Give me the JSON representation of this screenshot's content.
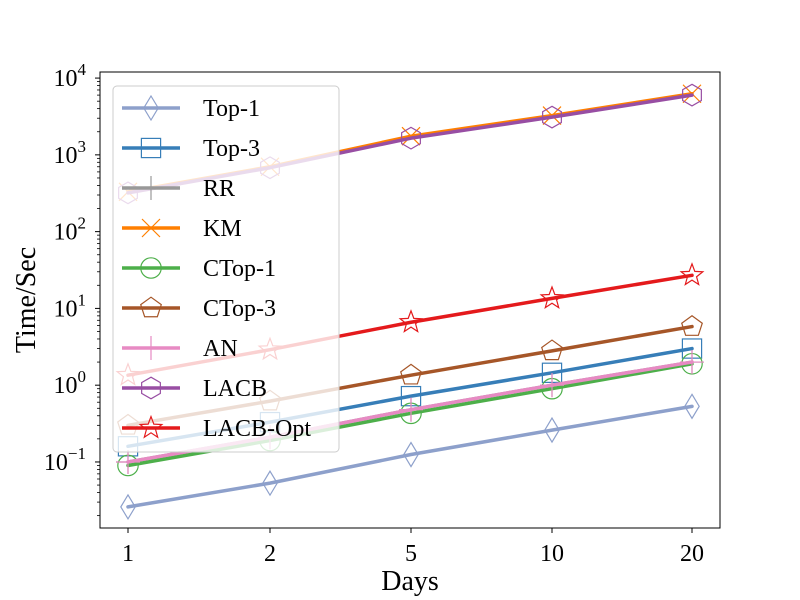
{
  "chart_data": {
    "type": "line",
    "xscale": "categorical",
    "yscale": "log",
    "ylim": [
      0.0138,
      12000
    ],
    "xlabel": "Days",
    "ylabel": "Time/Sec",
    "categories": [
      "1",
      "2",
      "5",
      "10",
      "20"
    ],
    "ytick_labels": [
      {
        "base": "10",
        "exp": "−1",
        "value": 0.1
      },
      {
        "base": "10",
        "exp": "0",
        "value": 1
      },
      {
        "base": "10",
        "exp": "1",
        "value": 10
      },
      {
        "base": "10",
        "exp": "2",
        "value": 100
      },
      {
        "base": "10",
        "exp": "3",
        "value": 1000
      },
      {
        "base": "10",
        "exp": "4",
        "value": 10000
      }
    ],
    "legend_position": "upper-left",
    "series": [
      {
        "name": "Top-1",
        "color": "#8da0cb",
        "marker": "thin_diamond",
        "values": [
          0.026,
          0.053,
          0.125,
          0.26,
          0.53
        ]
      },
      {
        "name": "Top-3",
        "color": "#377eb8",
        "marker": "square",
        "values": [
          0.16,
          0.33,
          0.72,
          1.45,
          3.0
        ]
      },
      {
        "name": "RR",
        "color": "#999999",
        "marker": "plus",
        "values": [
          0.1,
          0.21,
          0.48,
          1.0,
          2.0
        ]
      },
      {
        "name": "KM",
        "color": "#ff7f00",
        "marker": "x",
        "values": [
          330,
          700,
          1750,
          3250,
          6250
        ]
      },
      {
        "name": "CTop-1",
        "color": "#4daf4a",
        "marker": "circle",
        "values": [
          0.09,
          0.19,
          0.43,
          0.9,
          1.9
        ]
      },
      {
        "name": "CTop-3",
        "color": "#a65628",
        "marker": "pentagon",
        "values": [
          0.3,
          0.62,
          1.35,
          2.8,
          5.8
        ]
      },
      {
        "name": "AN",
        "color": "#e78ac3",
        "marker": "plus",
        "values": [
          0.1,
          0.21,
          0.48,
          1.0,
          2.0
        ]
      },
      {
        "name": "LACB",
        "color": "#984ea3",
        "marker": "hexagon",
        "values": [
          320,
          680,
          1650,
          3100,
          6000
        ]
      },
      {
        "name": "LACB-Opt",
        "color": "#e41a1c",
        "marker": "star",
        "values": [
          1.35,
          2.9,
          6.6,
          13.5,
          27
        ]
      }
    ]
  }
}
